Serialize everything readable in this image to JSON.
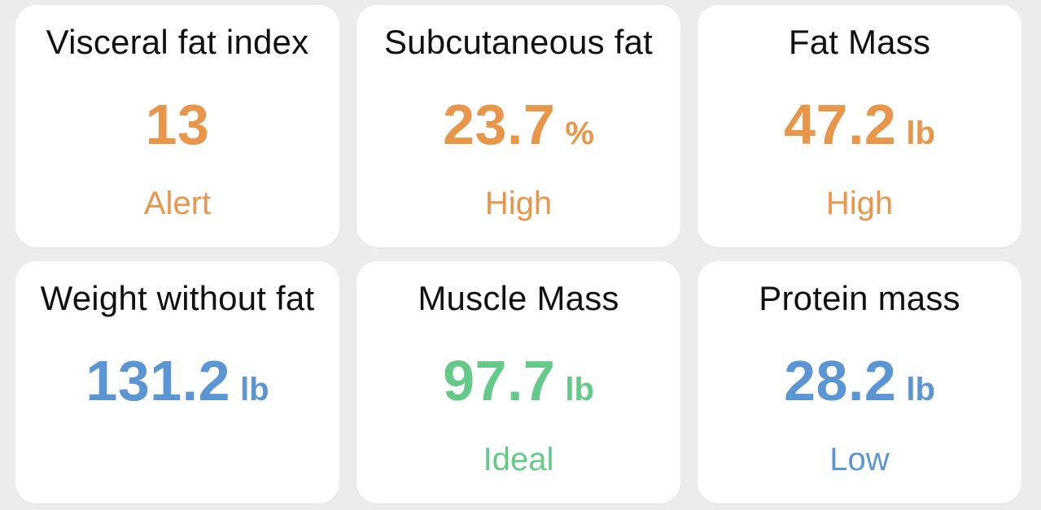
{
  "colors": {
    "alert": "#e8964a",
    "neutral": "#5b95d3",
    "ideal": "#65c98a"
  },
  "cards": [
    {
      "title": "Visceral fat index",
      "value": "13",
      "unit": "",
      "status": "Alert"
    },
    {
      "title": "Subcutaneous fat",
      "value": "23.7",
      "unit": "%",
      "status": "High"
    },
    {
      "title": "Fat Mass",
      "value": "47.2",
      "unit": "lb",
      "status": "High"
    },
    {
      "title": "Weight without fat",
      "value": "131.2",
      "unit": "lb",
      "status": ""
    },
    {
      "title": "Muscle Mass",
      "value": "97.7",
      "unit": "lb",
      "status": "Ideal"
    },
    {
      "title": "Protein mass",
      "value": "28.2",
      "unit": "lb",
      "status": "Low"
    }
  ]
}
